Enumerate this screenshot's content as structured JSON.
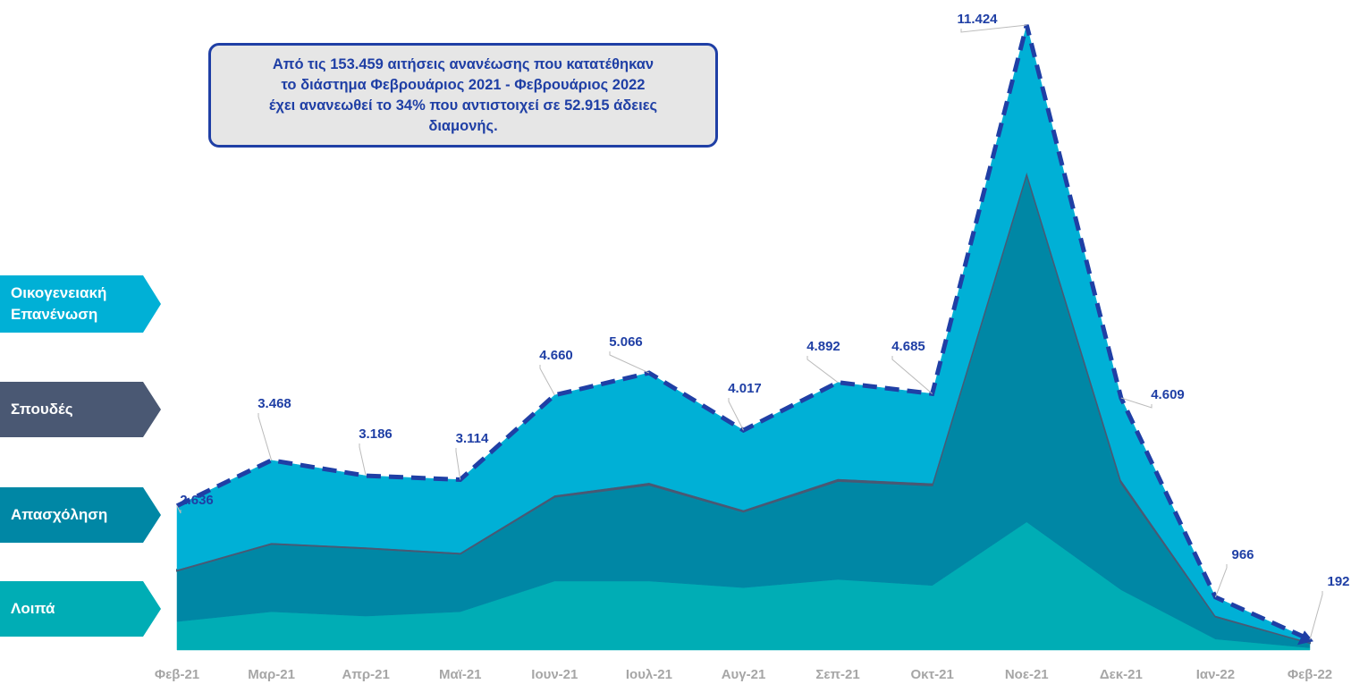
{
  "chart_data": {
    "type": "stacked_area",
    "annotation": [
      "Από τις 153.459 αιτήσεις ανανέωσης που κατατέθηκαν",
      "το διάστημα Φεβρουάριος 2021 - Φεβρουάριος 2022",
      "έχει ανανεωθεί το 34% που αντιστοιχεί σε 52.915 άδειες",
      "διαμονής."
    ],
    "categories": [
      "Φεβ-21",
      "Μαρ-21",
      "Απρ-21",
      "Μαϊ-21",
      "Ιουν-21",
      "Ιουλ-21",
      "Αυγ-21",
      "Σεπ-21",
      "Οκτ-21",
      "Νοε-21",
      "Δεκ-21",
      "Ιαν-22",
      "Φεβ-22"
    ],
    "series": [
      {
        "name": "Λοιπά",
        "color": "#00adb5",
        "values": [
          520,
          700,
          620,
          700,
          1260,
          1260,
          1140,
          1290,
          1180,
          2340,
          1100,
          200,
          40
        ]
      },
      {
        "name": "Απασχόληση",
        "color": "#0087a5",
        "values": [
          930,
          1240,
          1240,
          1060,
          1540,
          1760,
          1390,
          1800,
          1830,
          6360,
          1960,
          410,
          90
        ]
      },
      {
        "name": "Σπουδές",
        "color": "#4a5873",
        "values": [
          20,
          20,
          20,
          20,
          30,
          40,
          30,
          40,
          40,
          40,
          50,
          20,
          10
        ]
      },
      {
        "name": "Οικογενειακή Επανένωση",
        "color": "#00b0d6",
        "values": [
          1166,
          1508,
          1306,
          1334,
          1830,
          2006,
          1457,
          1762,
          1635,
          2684,
          1499,
          336,
          52
        ]
      }
    ],
    "totals": {
      "color": "#1f3fa5",
      "values": [
        2636,
        3468,
        3186,
        3114,
        4660,
        5066,
        4017,
        4892,
        4685,
        11424,
        4609,
        966,
        192
      ],
      "value_labels": [
        "2.636",
        "3.468",
        "3.186",
        "3.114",
        "4.660",
        "5.066",
        "4.017",
        "4.892",
        "4.685",
        "11.424",
        "4.609",
        "966",
        "192"
      ]
    }
  }
}
